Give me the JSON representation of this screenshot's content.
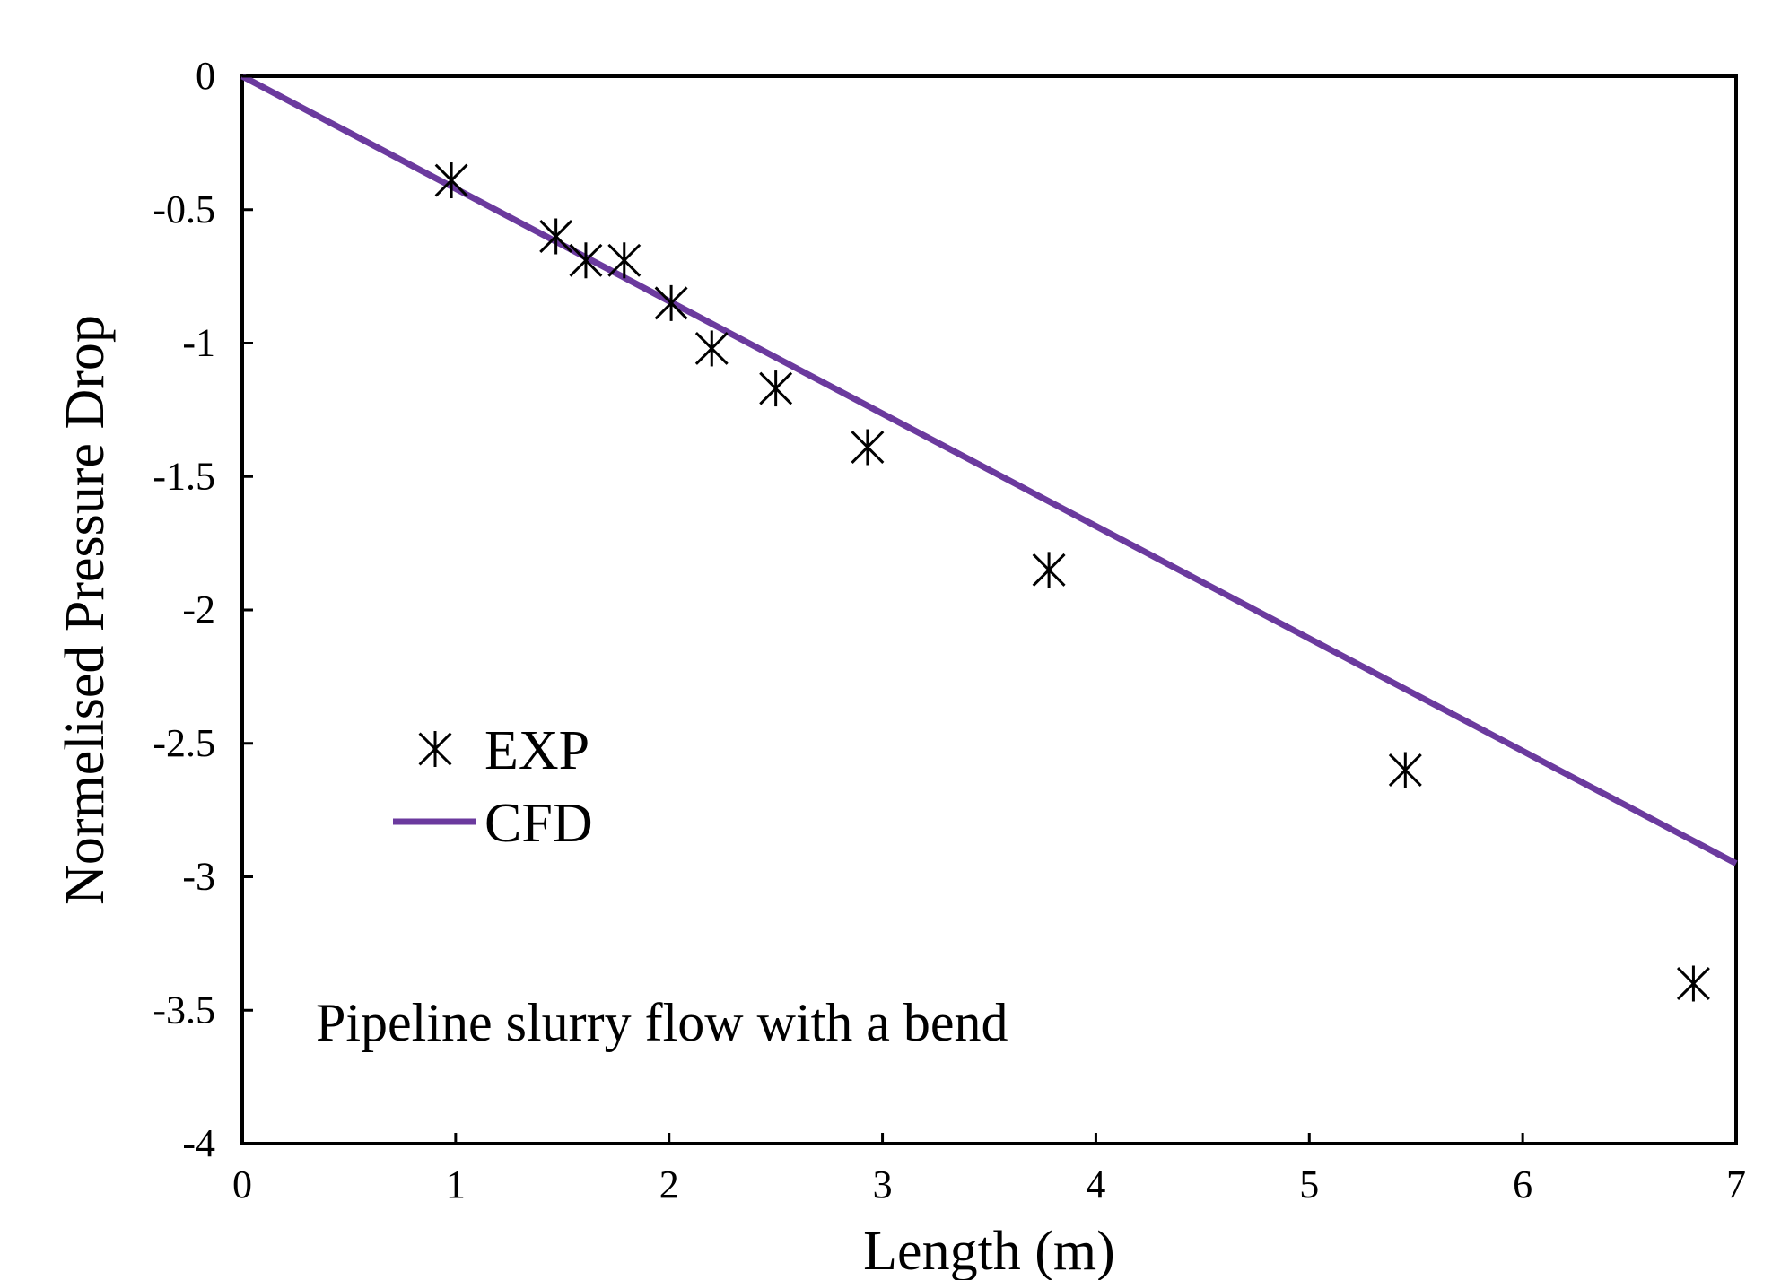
{
  "chart_data": {
    "type": "scatter",
    "title": "",
    "xlabel": "Length (m)",
    "ylabel": "Normelised Pressure Drop",
    "xlim": [
      0,
      7
    ],
    "ylim": [
      -4,
      0
    ],
    "x_ticks": [
      0,
      1,
      2,
      3,
      4,
      5,
      6,
      7
    ],
    "y_ticks": [
      0,
      -0.5,
      -1,
      -1.5,
      -2,
      -2.5,
      -3,
      -3.5,
      -4
    ],
    "x_tick_labels": [
      "0",
      "1",
      "2",
      "3",
      "4",
      "5",
      "6",
      "7"
    ],
    "y_tick_labels": [
      "0",
      "-0.5",
      "-1",
      "-1.5",
      "-2",
      "-2.5",
      "-3",
      "-3.5",
      "-4"
    ],
    "grid": false,
    "legend_position": "left",
    "annotation": "Pipeline slurry flow with a bend",
    "series": [
      {
        "name": "EXP",
        "type": "scatter",
        "marker": "asterisk",
        "color": "#000000",
        "points": [
          {
            "x": 0.98,
            "y": -0.39
          },
          {
            "x": 1.47,
            "y": -0.6
          },
          {
            "x": 1.61,
            "y": -0.69
          },
          {
            "x": 1.79,
            "y": -0.69
          },
          {
            "x": 2.01,
            "y": -0.85
          },
          {
            "x": 2.2,
            "y": -1.02
          },
          {
            "x": 2.5,
            "y": -1.17
          },
          {
            "x": 2.93,
            "y": -1.39
          },
          {
            "x": 3.78,
            "y": -1.85
          },
          {
            "x": 5.45,
            "y": -2.6
          },
          {
            "x": 6.8,
            "y": -3.4
          }
        ]
      },
      {
        "name": "CFD",
        "type": "line",
        "color": "#6B3A9E",
        "points": [
          {
            "x": 0,
            "y": 0
          },
          {
            "x": 7,
            "y": -2.95
          }
        ]
      }
    ]
  }
}
